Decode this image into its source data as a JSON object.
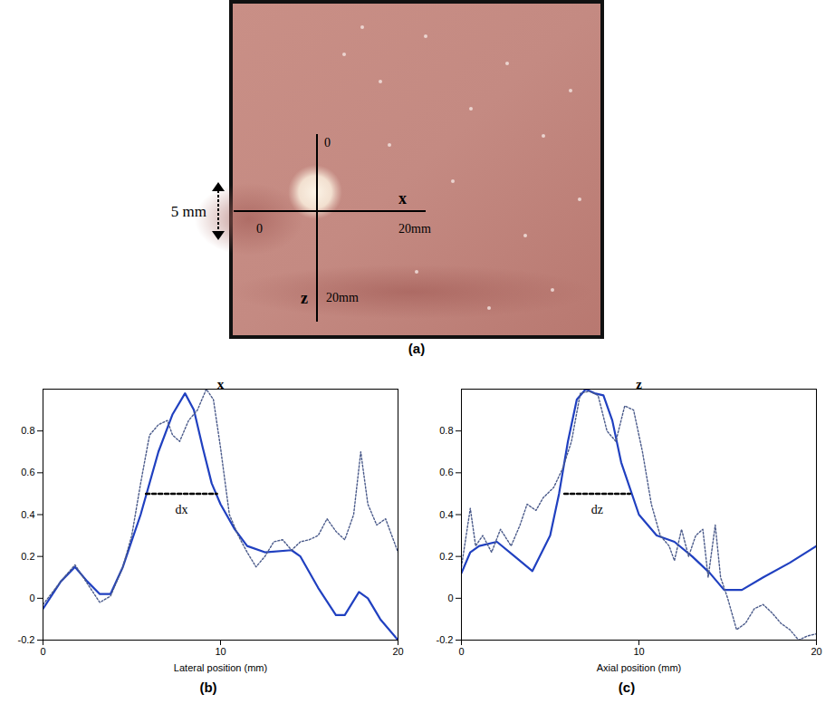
{
  "image_panel": {
    "label": "(a)",
    "scale_label": "5 mm",
    "x_axis": {
      "name": "x",
      "start": "0",
      "end": "20mm"
    },
    "z_axis": {
      "name": "z",
      "start": "0",
      "end": "20mm"
    }
  },
  "chart_data": [
    {
      "type": "line",
      "panel": "(b)",
      "title": "x",
      "x_label": "Lateral position (mm)",
      "xlim": [
        0,
        20
      ],
      "xticks": [
        0,
        10,
        20
      ],
      "ylim": [
        -0.2,
        1
      ],
      "yticks": [
        -0.2,
        0,
        0.2,
        0.4,
        0.6,
        0.8
      ],
      "grid": false,
      "annotations": [
        {
          "text": "dx",
          "x": [
            5.8,
            9.8
          ],
          "y": 0.5,
          "line_style": "dashed"
        }
      ],
      "series": [
        {
          "color": "#2040c0",
          "line_style": "solid",
          "x": [
            0,
            1,
            1.8,
            2.5,
            3.2,
            3.8,
            4.5,
            5.5,
            6.5,
            7.3,
            8,
            8.5,
            9,
            9.5,
            10,
            10.8,
            11.5,
            12.5,
            14,
            14.5,
            15.5,
            16.5,
            17,
            17.8,
            18.3,
            19,
            20
          ],
          "values": [
            -0.05,
            0.08,
            0.15,
            0.08,
            0.02,
            0.02,
            0.15,
            0.4,
            0.7,
            0.88,
            0.98,
            0.9,
            0.72,
            0.55,
            0.45,
            0.33,
            0.25,
            0.22,
            0.23,
            0.2,
            0.05,
            -0.08,
            -0.08,
            0.03,
            0,
            -0.1,
            -0.2
          ]
        },
        {
          "color": "#4a5a8a",
          "line_style": "dotted",
          "x": [
            0,
            1,
            1.8,
            2.5,
            3.2,
            3.8,
            4.5,
            5,
            5.5,
            6,
            6.5,
            7,
            7.3,
            7.7,
            8.2,
            8.7,
            9.2,
            9.6,
            10,
            10.5,
            11,
            11.5,
            12,
            12.5,
            13,
            13.5,
            14,
            14.5,
            15,
            15.5,
            16,
            16.5,
            17,
            17.5,
            17.9,
            18.3,
            18.8,
            19.3,
            20
          ],
          "values": [
            -0.03,
            0.08,
            0.16,
            0.07,
            -0.02,
            0.01,
            0.15,
            0.3,
            0.55,
            0.78,
            0.83,
            0.85,
            0.78,
            0.75,
            0.85,
            0.9,
            1,
            0.95,
            0.72,
            0.4,
            0.3,
            0.22,
            0.15,
            0.2,
            0.27,
            0.28,
            0.23,
            0.27,
            0.28,
            0.3,
            0.38,
            0.32,
            0.28,
            0.4,
            0.7,
            0.45,
            0.35,
            0.38,
            0.22
          ]
        }
      ]
    },
    {
      "type": "line",
      "panel": "(c)",
      "title": "z",
      "x_label": "Axial position (mm)",
      "xlim": [
        0,
        20
      ],
      "xticks": [
        0,
        10,
        20
      ],
      "ylim": [
        -0.2,
        1
      ],
      "yticks": [
        -0.2,
        0,
        0.2,
        0.4,
        0.6,
        0.8
      ],
      "grid": false,
      "annotations": [
        {
          "text": "dz",
          "x": [
            5.8,
            9.5
          ],
          "y": 0.5,
          "line_style": "dashed"
        }
      ],
      "series": [
        {
          "color": "#2040c0",
          "line_style": "solid",
          "x": [
            0,
            0.5,
            1,
            2,
            3,
            4,
            5,
            5.5,
            6,
            6.5,
            7,
            7.5,
            8,
            8.5,
            9,
            10,
            11,
            12,
            13,
            14,
            14.8,
            15.8,
            17,
            18.5,
            20
          ],
          "values": [
            0.12,
            0.22,
            0.25,
            0.27,
            0.2,
            0.13,
            0.3,
            0.5,
            0.75,
            0.95,
            1,
            0.98,
            0.97,
            0.85,
            0.65,
            0.4,
            0.3,
            0.27,
            0.2,
            0.12,
            0.04,
            0.04,
            0.1,
            0.17,
            0.25
          ]
        },
        {
          "color": "#4a5a8a",
          "line_style": "dotted",
          "x": [
            0,
            0.5,
            0.8,
            1.2,
            1.7,
            2.2,
            2.8,
            3.3,
            3.7,
            4.2,
            4.6,
            5.2,
            5.7,
            6.2,
            6.7,
            7.2,
            7.7,
            8.2,
            8.7,
            9.2,
            9.7,
            10.2,
            10.7,
            11.2,
            11.7,
            12,
            12.4,
            12.8,
            13.2,
            13.6,
            13.9,
            14.3,
            14.6,
            15,
            15.5,
            16,
            16.5,
            17,
            17.5,
            18,
            18.5,
            19,
            19.5,
            20
          ],
          "values": [
            0.15,
            0.43,
            0.25,
            0.3,
            0.22,
            0.33,
            0.25,
            0.35,
            0.45,
            0.42,
            0.48,
            0.53,
            0.62,
            0.75,
            0.98,
            0.99,
            0.97,
            0.8,
            0.75,
            0.92,
            0.9,
            0.7,
            0.45,
            0.3,
            0.25,
            0.18,
            0.33,
            0.2,
            0.3,
            0.33,
            0.1,
            0.35,
            0.1,
            0,
            -0.15,
            -0.12,
            -0.05,
            -0.03,
            -0.07,
            -0.12,
            -0.15,
            -0.2,
            -0.18,
            -0.17
          ]
        }
      ]
    }
  ]
}
